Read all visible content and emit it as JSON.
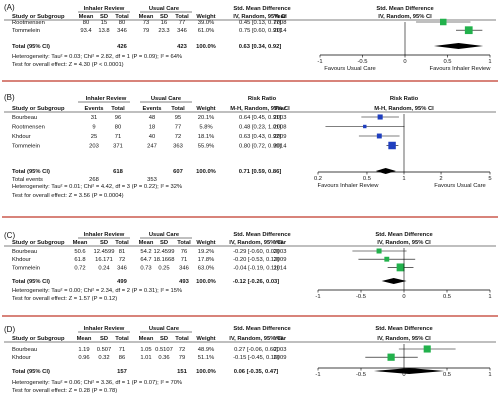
{
  "chart_data": [
    {
      "type": "forest",
      "panel_label": "(A)",
      "group_headers": {
        "experimental": "Inhaler Review",
        "control": "Usual Care",
        "effect": "Std. Mean Difference",
        "plot": "Std. Mean Difference"
      },
      "columns": [
        "Study or Subgroup",
        "Mean",
        "SD",
        "Total",
        "Mean",
        "SD",
        "Total",
        "Weight",
        "IV, Random, 95% CI",
        "Year",
        "IV, Random, 95% CI"
      ],
      "studies": [
        {
          "name": "Rootmensen",
          "e_mean": "80",
          "e_sd": "15",
          "e_total": "80",
          "c_mean": "73",
          "c_sd": "16",
          "c_total": "77",
          "weight": "39.0%",
          "ci": "0.45 [0.13, 0.77]",
          "year": "2008",
          "est": 0.45,
          "lo": 0.13,
          "hi": 0.77
        },
        {
          "name": "Tommelein",
          "e_mean": "93.4",
          "e_sd": "13.8",
          "e_total": "346",
          "c_mean": "79",
          "c_sd": "23.3",
          "c_total": "346",
          "weight": "61.0%",
          "ci": "0.75 [0.60, 0.91]",
          "year": "2014",
          "est": 0.75,
          "lo": 0.6,
          "hi": 0.91
        }
      ],
      "total": {
        "label": "Total (95% CI)",
        "e_total": "426",
        "c_total": "423",
        "weight": "100.0%",
        "ci": "0.63 [0.34, 0.92]",
        "est": 0.63,
        "lo": 0.34,
        "hi": 0.92
      },
      "heterogeneity": "Heterogeneity: Tau² = 0.03; Chi² = 2.82, df = 1 (P = 0.09); I² = 64%",
      "overall_effect": "Test for overall effect: Z = 4.30 (P < 0.0001)",
      "axis": {
        "scale": "linear",
        "min": -1,
        "max": 1,
        "ticks": [
          -1,
          -0.5,
          0,
          0.5,
          1
        ],
        "tick_labels": [
          "-1",
          "-0.5",
          "0",
          "0.5",
          "1"
        ],
        "favours_left": "Favours Usual Care",
        "favours_right": "Favours Inhaler Review"
      },
      "marker_color": "#22b14c"
    },
    {
      "type": "forest",
      "panel_label": "(B)",
      "group_headers": {
        "experimental": "Inhaler Review",
        "control": "Usual Care",
        "effect": "Risk Ratio",
        "plot": "Risk Ratio"
      },
      "columns": [
        "Study or Subgroup",
        "Events",
        "Total",
        "Events",
        "Total",
        "Weight",
        "M-H, Random, 95% CI",
        "Year",
        "M-H, Random, 95% CI"
      ],
      "studies": [
        {
          "name": "Bourbeau",
          "e_events": "31",
          "e_total": "96",
          "c_events": "48",
          "c_total": "95",
          "weight": "20.1%",
          "ci": "0.64 [0.45, 0.91]",
          "year": "2003",
          "est": 0.64,
          "lo": 0.45,
          "hi": 0.91
        },
        {
          "name": "Rootmensen",
          "e_events": "9",
          "e_total": "80",
          "c_events": "18",
          "c_total": "77",
          "weight": "5.8%",
          "ci": "0.48 [0.23, 1.01]",
          "year": "2008",
          "est": 0.48,
          "lo": 0.23,
          "hi": 1.01
        },
        {
          "name": "Khdour",
          "e_events": "25",
          "e_total": "71",
          "c_events": "40",
          "c_total": "72",
          "weight": "18.1%",
          "ci": "0.63 [0.43, 0.92]",
          "year": "2009",
          "est": 0.63,
          "lo": 0.43,
          "hi": 0.92
        },
        {
          "name": "Tommelein",
          "e_events": "203",
          "e_total": "371",
          "c_events": "247",
          "c_total": "363",
          "weight": "55.9%",
          "ci": "0.80 [0.72, 0.90]",
          "year": "2014",
          "est": 0.8,
          "lo": 0.72,
          "hi": 0.9
        }
      ],
      "total": {
        "label": "Total (95% CI)",
        "e_total": "618",
        "c_total": "607",
        "weight": "100.0%",
        "ci": "0.71 [0.59, 0.86]",
        "est": 0.71,
        "lo": 0.59,
        "hi": 0.86
      },
      "total_events": {
        "label": "Total events",
        "e": "268",
        "c": "353"
      },
      "heterogeneity": "Heterogeneity: Tau² = 0.01; Chi² = 4.42, df = 3 (P = 0.22); I² = 32%",
      "overall_effect": "Test for overall effect: Z = 3.56 (P = 0.0004)",
      "axis": {
        "scale": "log",
        "min": 0.2,
        "max": 5,
        "ticks": [
          0.2,
          0.5,
          1,
          2,
          5
        ],
        "tick_labels": [
          "0.2",
          "0.5",
          "1",
          "2",
          "5"
        ],
        "favours_left": "Favours Inhaler Review",
        "favours_right": "Favours Usual Care"
      },
      "marker_color": "#1f3fbf"
    },
    {
      "type": "forest",
      "panel_label": "(C)",
      "group_headers": {
        "experimental": "Inhaler Review",
        "control": "Usual Care",
        "effect": "Std. Mean Difference",
        "plot": "Std. Mean Difference"
      },
      "columns": [
        "Study or Subgroup",
        "Mean",
        "SD",
        "Total",
        "Mean",
        "SD",
        "Total",
        "Weight",
        "IV, Random, 95% CI",
        "Year",
        "IV, Random, 95% CI"
      ],
      "studies": [
        {
          "name": "Bourbeau",
          "e_mean": "50.6",
          "e_sd": "12.4599",
          "e_total": "81",
          "c_mean": "54.2",
          "c_sd": "12.4599",
          "c_total": "76",
          "weight": "19.2%",
          "ci": "-0.29 [-0.60, 0.03]",
          "year": "2003",
          "est": -0.29,
          "lo": -0.6,
          "hi": 0.03
        },
        {
          "name": "Khdour",
          "e_mean": "61.8",
          "e_sd": "16.171",
          "e_total": "72",
          "c_mean": "64.7",
          "c_sd": "18.1668",
          "c_total": "71",
          "weight": "17.8%",
          "ci": "-0.20 [-0.53, 0.13]",
          "year": "2009",
          "est": -0.2,
          "lo": -0.53,
          "hi": 0.13
        },
        {
          "name": "Tommelein",
          "e_mean": "0.72",
          "e_sd": "0.24",
          "e_total": "346",
          "c_mean": "0.73",
          "c_sd": "0.25",
          "c_total": "346",
          "weight": "63.0%",
          "ci": "-0.04 [-0.19, 0.11]",
          "year": "2014",
          "est": -0.04,
          "lo": -0.19,
          "hi": 0.11
        }
      ],
      "total": {
        "label": "Total (95% CI)",
        "e_total": "499",
        "c_total": "493",
        "weight": "100.0%",
        "ci": "-0.12 [-0.26, 0.03]",
        "est": -0.12,
        "lo": -0.26,
        "hi": 0.03
      },
      "heterogeneity": "Heterogeneity: Tau² = 0.00; Chi² = 2.34, df = 2 (P = 0.31); I² = 15%",
      "overall_effect": "Test for overall effect: Z = 1.57 (P = 0.12)",
      "axis": {
        "scale": "linear",
        "min": -1,
        "max": 1,
        "ticks": [
          -1,
          -0.5,
          0,
          0.5,
          1
        ],
        "tick_labels": [
          "-1",
          "-0.5",
          "0",
          "0.5",
          "1"
        ],
        "favours_left": "",
        "favours_right": ""
      },
      "marker_color": "#22b14c"
    },
    {
      "type": "forest",
      "panel_label": "(D)",
      "group_headers": {
        "experimental": "Inhaler Review",
        "control": "Usual Care",
        "effect": "Std. Mean Difference",
        "plot": "Std. Mean Difference"
      },
      "columns": [
        "Study or Subgroup",
        "Mean",
        "SD",
        "Total",
        "Mean",
        "SD",
        "Total",
        "Weight",
        "IV, Random, 95% CI",
        "Year",
        "IV, Random, 95% CI"
      ],
      "studies": [
        {
          "name": "Bourbeau",
          "e_mean": "1.19",
          "e_sd": "0.507",
          "e_total": "71",
          "c_mean": "1.05",
          "c_sd": "0.5107",
          "c_total": "72",
          "weight": "48.9%",
          "ci": "0.27 [-0.06, 0.60]",
          "year": "2003",
          "est": 0.27,
          "lo": -0.06,
          "hi": 0.6
        },
        {
          "name": "Khdour",
          "e_mean": "0.96",
          "e_sd": "0.32",
          "e_total": "86",
          "c_mean": "1.01",
          "c_sd": "0.36",
          "c_total": "79",
          "weight": "51.1%",
          "ci": "-0.15 [-0.45, 0.16]",
          "year": "2009",
          "est": -0.15,
          "lo": -0.45,
          "hi": 0.16
        }
      ],
      "total": {
        "label": "Total (95% CI)",
        "e_total": "157",
        "c_total": "151",
        "weight": "100.0%",
        "ci": "0.06 [-0.35, 0.47]",
        "est": 0.06,
        "lo": -0.35,
        "hi": 0.47
      },
      "heterogeneity": "Heterogeneity: Tau² = 0.06; Chi² = 3.36, df = 1 (P = 0.07); I² = 70%",
      "overall_effect": "Test for overall effect: Z = 0.28 (P = 0.78)",
      "axis": {
        "scale": "linear",
        "min": -1,
        "max": 1,
        "ticks": [
          -1,
          -0.5,
          0,
          0.5,
          1
        ],
        "tick_labels": [
          "-1",
          "-0.5",
          "0",
          "0.5",
          "1"
        ],
        "favours_left": "",
        "favours_right": ""
      },
      "marker_color": "#22b14c"
    }
  ],
  "colors": {
    "separator": "#c0392b",
    "line": "#000000",
    "text": "#111111"
  }
}
